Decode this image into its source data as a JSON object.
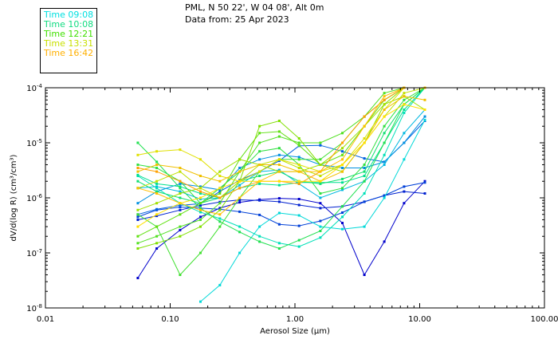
{
  "header": {
    "line1": "PML, N 50 22', W 04 08', Alt 0m",
    "line2": "Data from: 25 Apr 2023"
  },
  "chart_data": {
    "type": "line",
    "title": "PML, N 50 22', W 04 08', Alt 0m",
    "subtitle": "Data from: 25 Apr 2023",
    "xlabel": "Aerosol Size (μm)",
    "ylabel": "dV/d(log R) (cm³/cm³)",
    "x_scale": "log",
    "y_scale": "log",
    "xlim": [
      0.01,
      100
    ],
    "ylim": [
      1e-08,
      0.0001
    ],
    "x_ticks": [
      "0.01",
      "0.10",
      "1.00",
      "10.00",
      "100.00"
    ],
    "y_ticks": [
      {
        "base": "10",
        "exp": "-8",
        "value": 1e-08
      },
      {
        "base": "10",
        "exp": "-7",
        "value": 1e-07
      },
      {
        "base": "10",
        "exp": "-6",
        "value": 1e-06
      },
      {
        "base": "10",
        "exp": "-5",
        "value": 1e-05
      },
      {
        "base": "10",
        "exp": "-4",
        "value": 0.0001
      }
    ],
    "legend": {
      "placement": "top-left",
      "entries": [
        {
          "label": "Time 09:08",
          "color": "#00e0e0"
        },
        {
          "label": "Time 10:08",
          "color": "#10dc80"
        },
        {
          "label": "Time 12:21",
          "color": "#40e000"
        },
        {
          "label": "Time 13:31",
          "color": "#c8e000"
        },
        {
          "label": "Time 16:42",
          "color": "#ffb000"
        }
      ]
    },
    "x": [
      0.055,
      0.078,
      0.12,
      0.175,
      0.25,
      0.36,
      0.52,
      0.75,
      1.08,
      1.6,
      2.4,
      3.6,
      5.2,
      7.5,
      11.0
    ],
    "series": [
      {
        "color": "#0000cc",
        "values": [
          3.5e-08,
          1.2e-07,
          2.6e-07,
          4.5e-07,
          6.5e-07,
          8.3e-07,
          9.3e-07,
          9.8e-07,
          9.5e-07,
          8e-07,
          3.5e-07,
          4e-08,
          1.6e-07,
          8e-07,
          2e-06
        ]
      },
      {
        "color": "#0020d0",
        "values": [
          4e-07,
          4.7e-07,
          6e-07,
          7.3e-07,
          8.4e-07,
          9.2e-07,
          9e-07,
          8.5e-07,
          7.4e-07,
          6.5e-07,
          7e-07,
          8.5e-07,
          1.1e-06,
          1.3e-06,
          1.2e-06
        ]
      },
      {
        "color": "#0040d8",
        "values": [
          4.5e-07,
          6e-07,
          6.8e-07,
          6.5e-07,
          6.2e-07,
          5.6e-07,
          4.9e-07,
          3.3e-07,
          3.1e-07,
          3.8e-07,
          5.4e-07,
          8.5e-07,
          1.1e-06,
          1.6e-06,
          1.9e-06
        ]
      },
      {
        "color": "#0060e0",
        "values": [
          5e-07,
          6.2e-07,
          7.3e-07,
          7.8e-07,
          1.3e-06,
          2.1e-06,
          3e-06,
          4.7e-06,
          8.8e-06,
          9e-06,
          7e-06,
          5.2e-06,
          4.5e-06,
          1e-05,
          2.5e-05
        ]
      },
      {
        "color": "#0090e0",
        "values": [
          8e-07,
          1.3e-06,
          1.8e-06,
          1.6e-06,
          1.4e-06,
          3.5e-06,
          5e-06,
          6e-06,
          5.5e-06,
          4e-06,
          3.5e-06,
          3.5e-06,
          4.5e-06,
          1e-05,
          3e-05
        ]
      },
      {
        "color": "#00b8e0",
        "values": [
          1.5e-06,
          1.6e-06,
          1.3e-06,
          9.5e-07,
          1e-06,
          1.7e-06,
          3e-06,
          3.2e-06,
          1.8e-06,
          1e-06,
          1.4e-06,
          2e-06,
          4e-06,
          1.5e-05,
          4e-05
        ]
      },
      {
        "color": "#00d8d8",
        "values": [
          null,
          null,
          null,
          1.3e-08,
          2.6e-08,
          1e-07,
          3e-07,
          5.3e-07,
          4.8e-07,
          3e-07,
          2.7e-07,
          3e-07,
          1e-06,
          5e-06,
          2.6e-05
        ]
      },
      {
        "color": "#00e0b8",
        "values": [
          2.5e-06,
          1.5e-06,
          8e-07,
          5.5e-07,
          4.2e-07,
          3e-07,
          2e-07,
          1.5e-07,
          1.3e-07,
          1.9e-07,
          4.5e-07,
          1.2e-06,
          6e-06,
          3.5e-05,
          0.0001
        ]
      },
      {
        "color": "#00e090",
        "values": [
          2.6e-06,
          1.8e-06,
          1.6e-06,
          1.2e-06,
          1e-06,
          1.5e-06,
          1.8e-06,
          1.7e-06,
          1.9e-06,
          1.9e-06,
          1.9e-06,
          2.5e-06,
          1e-05,
          4e-05,
          0.0001
        ]
      },
      {
        "color": "#10e070",
        "values": [
          2e-06,
          1.3e-06,
          1e-06,
          8e-07,
          1e-06,
          2e-06,
          2.5e-06,
          3e-06,
          2e-06,
          1.8e-06,
          2.2e-06,
          3e-06,
          1.5e-05,
          5e-05,
          0.0001
        ]
      },
      {
        "color": "#20e050",
        "values": [
          1e-05,
          4.5e-06,
          1.5e-06,
          6.5e-07,
          3.7e-07,
          2.4e-07,
          1.6e-07,
          1.2e-07,
          1.7e-07,
          2.5e-07,
          7e-07,
          2e-06,
          1e-05,
          5e-05,
          0.0001
        ]
      },
      {
        "color": "#30e040",
        "values": [
          4e-06,
          3.5e-06,
          2e-06,
          8e-07,
          1.5e-06,
          3e-06,
          7e-06,
          8e-06,
          4e-06,
          1.2e-06,
          1.5e-06,
          4e-06,
          2e-05,
          6e-05,
          0.0001
        ]
      },
      {
        "color": "#40e030",
        "values": [
          5e-07,
          3e-07,
          4e-08,
          1e-07,
          3e-07,
          1e-06,
          3e-06,
          5e-06,
          5e-06,
          5e-06,
          1e-05,
          3e-05,
          6e-05,
          0.0001,
          0.0001
        ]
      },
      {
        "color": "#50e020",
        "values": [
          1.5e-07,
          2e-07,
          3e-07,
          4e-07,
          8e-07,
          3e-06,
          1e-05,
          1.3e-05,
          1e-05,
          1e-05,
          1.5e-05,
          3e-05,
          8e-05,
          0.0001,
          0.0001
        ]
      },
      {
        "color": "#60e010",
        "values": [
          2e-07,
          3e-07,
          5e-07,
          8e-07,
          1.2e-06,
          5e-06,
          1.5e-05,
          1.6e-05,
          9e-06,
          4e-06,
          6e-06,
          2e-05,
          6e-05,
          0.0001,
          0.0001
        ]
      },
      {
        "color": "#80e000",
        "values": [
          1.2e-07,
          1.5e-07,
          2e-07,
          3e-07,
          6e-07,
          2e-06,
          2e-05,
          2.5e-05,
          1.2e-05,
          4e-06,
          3e-06,
          1e-05,
          5e-05,
          0.0001,
          0.0001
        ]
      },
      {
        "color": "#a0e000",
        "values": [
          6e-07,
          8e-07,
          1.2e-06,
          1.5e-06,
          3e-06,
          5e-06,
          4e-06,
          3e-06,
          3e-06,
          4e-06,
          8e-06,
          2e-05,
          5e-05,
          7e-05,
          4e-05
        ]
      },
      {
        "color": "#c0e000",
        "values": [
          1.5e-06,
          2e-06,
          3e-06,
          1.5e-06,
          1e-06,
          2e-06,
          4e-06,
          5e-06,
          3.5e-06,
          2.5e-06,
          4e-06,
          1e-05,
          3e-05,
          8e-05,
          0.0001
        ]
      },
      {
        "color": "#e0e000",
        "values": [
          6e-06,
          7e-06,
          7.5e-06,
          5e-06,
          2.5e-06,
          2e-06,
          3e-06,
          5e-06,
          4e-06,
          3e-06,
          4e-06,
          1.2e-05,
          4e-05,
          0.0001,
          0.0001
        ]
      },
      {
        "color": "#f0c000",
        "values": [
          3e-06,
          4e-06,
          3.5e-06,
          2.5e-06,
          2e-06,
          3e-06,
          4e-06,
          4e-06,
          3e-06,
          2e-06,
          3e-06,
          1e-05,
          4e-05,
          7e-05,
          6e-05
        ]
      },
      {
        "color": "#ffa000",
        "values": [
          3.5e-06,
          3e-06,
          2e-06,
          1.3e-06,
          1e-06,
          1.5e-06,
          2e-06,
          2e-06,
          1.8e-06,
          3e-06,
          1e-05,
          3e-05,
          6e-05,
          0.0001,
          0.0001
        ]
      },
      {
        "color": "#ffc000",
        "values": [
          1.5e-06,
          1.2e-06,
          8e-07,
          6e-07,
          5e-07,
          1e-06,
          2e-06,
          3e-06,
          3e-06,
          3e-06,
          5e-06,
          2e-05,
          7e-05,
          0.0001,
          0.0001
        ]
      },
      {
        "color": "#ffe000",
        "values": [
          3e-07,
          5e-07,
          8e-07,
          1e-06,
          1.5e-06,
          2e-06,
          2e-06,
          2e-06,
          2e-06,
          2e-06,
          4e-06,
          1e-05,
          3e-05,
          5e-05,
          4e-05
        ]
      }
    ],
    "grid": false
  }
}
